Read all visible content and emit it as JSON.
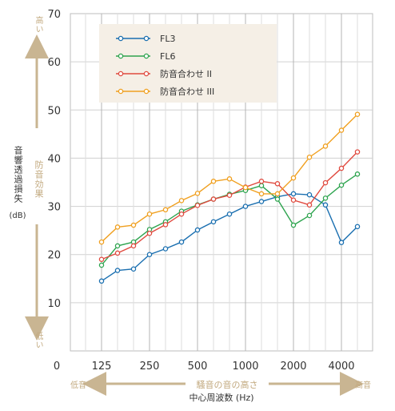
{
  "chart_data": {
    "type": "line",
    "categories": [
      "125",
      "160",
      "200",
      "250",
      "315",
      "400",
      "500",
      "630",
      "800",
      "1000",
      "1250",
      "1600",
      "2000",
      "2500",
      "3150",
      "4000",
      "5000"
    ],
    "x_tick_labels": [
      "0",
      "125",
      "250",
      "500",
      "1000",
      "2000",
      "4000"
    ],
    "y_tick_labels": [
      "10",
      "20",
      "30",
      "40",
      "50",
      "60",
      "70"
    ],
    "ylim": [
      0,
      70
    ],
    "grid": true,
    "legend_position": "top-left",
    "ylabel_main": "音響透過損失",
    "ylabel_unit": "(dB)",
    "ylabel_side": "防音効果",
    "y_high": "高い",
    "y_low": "低い",
    "xlabel_main": "中心周波数 (Hz)",
    "xlabel_center": "騒音の音の高さ",
    "x_low": "低音",
    "x_high": "高音",
    "series": [
      {
        "name": "FL3",
        "color": "#1a6fb0",
        "values": [
          14.5,
          16.7,
          17.0,
          20.0,
          21.2,
          22.6,
          25.1,
          26.8,
          28.4,
          30.0,
          31.0,
          32.0,
          32.6,
          32.4,
          30.3,
          22.5,
          25.8
        ]
      },
      {
        "name": "FL6",
        "color": "#2ea44f",
        "values": [
          17.8,
          21.8,
          22.6,
          25.2,
          26.8,
          29.0,
          30.3,
          31.5,
          32.5,
          33.3,
          34.3,
          31.5,
          26.1,
          28.1,
          31.7,
          34.4,
          36.7
        ]
      },
      {
        "name": "防音合わせ II",
        "color": "#e04a3f",
        "values": [
          19.0,
          20.3,
          21.8,
          24.4,
          26.2,
          28.4,
          30.2,
          31.5,
          32.3,
          34.0,
          35.2,
          34.7,
          31.3,
          30.3,
          34.9,
          37.9,
          41.3
        ]
      },
      {
        "name": "防音合わせ III",
        "color": "#f0a020",
        "values": [
          22.6,
          25.7,
          26.1,
          28.4,
          29.3,
          31.2,
          32.7,
          35.2,
          35.7,
          33.9,
          32.6,
          32.6,
          35.9,
          40.2,
          42.5,
          45.8,
          49.1
        ]
      }
    ]
  }
}
